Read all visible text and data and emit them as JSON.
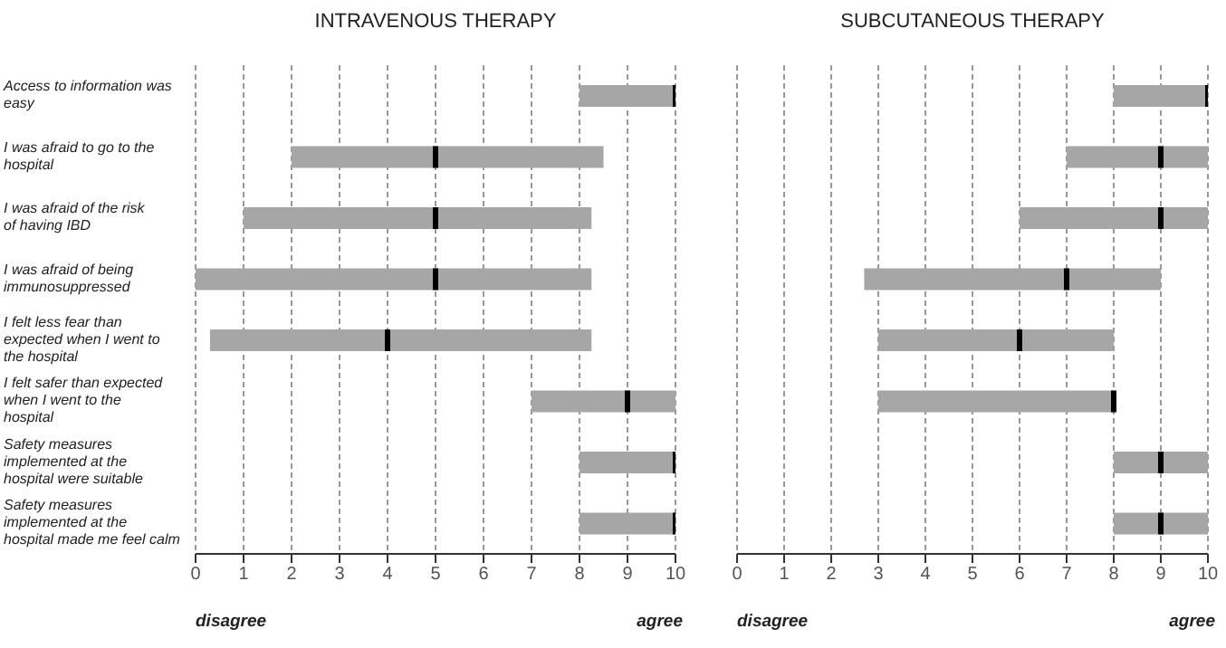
{
  "chart_data": [
    {
      "type": "box",
      "title": "INTRAVENOUS THERAPY",
      "orientation": "horizontal",
      "categories": [
        "Access to information was easy",
        "I was afraid to go to the hospital",
        "I was afraid of the risk of having IBD",
        "I was afraid of being immunosuppressed",
        "I felt less fear than expected when I went to the hospital",
        "I felt safer than expected when I went to the hospital",
        "Safety measures implemented at the hospital were suitable",
        "Safety measures implemented at the hospital made me feel calm"
      ],
      "series": [
        {
          "color": "#a6a6a6",
          "boxes": [
            {
              "low": 8,
              "q1": 8,
              "median": 10,
              "q3": 10,
              "high": 10
            },
            {
              "low": 2,
              "q1": 2,
              "median": 5,
              "q3": 8.5,
              "high": 8.5
            },
            {
              "low": 1,
              "q1": 1,
              "median": 5,
              "q3": 8.25,
              "high": 8.25
            },
            {
              "low": 0,
              "q1": 0,
              "median": 5,
              "q3": 8.25,
              "high": 8.25
            },
            {
              "low": 0.3,
              "q1": 0.3,
              "median": 4,
              "q3": 8.25,
              "high": 8.25
            },
            {
              "low": 7,
              "q1": 7,
              "median": 9,
              "q3": 10,
              "high": 10
            },
            {
              "low": 8,
              "q1": 8,
              "median": 10,
              "q3": 10,
              "high": 10
            },
            {
              "low": 8,
              "q1": 8,
              "median": 10,
              "q3": 10,
              "high": 10
            }
          ]
        }
      ],
      "xlim": [
        0,
        10
      ],
      "xticks": [
        0,
        1,
        2,
        3,
        4,
        5,
        6,
        7,
        8,
        9,
        10
      ],
      "grid": "x",
      "annotations": [
        "disagree",
        "agree"
      ]
    },
    {
      "type": "box",
      "title": "SUBCUTANEOUS THERAPY",
      "orientation": "horizontal",
      "categories": [
        null,
        null,
        null,
        null,
        null,
        null,
        null,
        null
      ],
      "series": [
        {
          "color": "#a6a6a6",
          "boxes": [
            {
              "low": 8,
              "q1": 8,
              "median": 10,
              "q3": 10,
              "high": 10
            },
            {
              "low": 7,
              "q1": 7,
              "median": 9,
              "q3": 10,
              "high": 10
            },
            {
              "low": 6,
              "q1": 6,
              "median": 9,
              "q3": 10,
              "high": 10
            },
            {
              "low": 2.7,
              "q1": 2.7,
              "median": 7,
              "q3": 9,
              "high": 9
            },
            {
              "low": 3,
              "q1": 3,
              "median": 6,
              "q3": 8,
              "high": 8
            },
            {
              "low": 3,
              "q1": 3,
              "median": 8,
              "q3": 8,
              "high": 8
            },
            {
              "low": 8,
              "q1": 8,
              "median": 9,
              "q3": 10,
              "high": 10
            },
            {
              "low": 8,
              "q1": 8,
              "median": 9,
              "q3": 10,
              "high": 10
            }
          ]
        }
      ],
      "xlim": [
        0,
        10
      ],
      "xticks": [
        0,
        1,
        2,
        3,
        4,
        5,
        6,
        7,
        8,
        9,
        10
      ],
      "grid": "x",
      "tick_labels": "x",
      "annotations": [
        "disagree",
        "agree"
      ]
    }
  ]
}
